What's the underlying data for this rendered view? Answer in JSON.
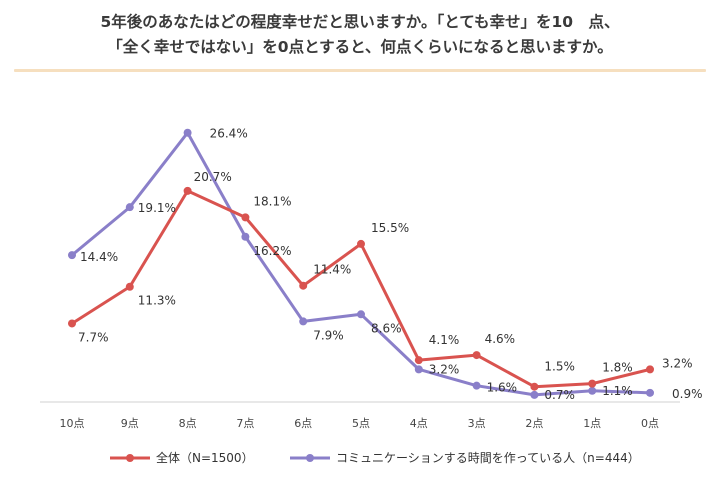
{
  "title": {
    "line1": "5年後のあなたはどの程度幸せだと思いますか。「とても幸せ」を10　点、",
    "line2": "「全く幸せではない」を0点とすると、何点くらいになると思いますか。"
  },
  "colors": {
    "series_all": "#d9534f",
    "series_comm": "#8a7fc9",
    "divider": "#f6dfbf"
  },
  "chart_data": {
    "type": "line",
    "categories": [
      "10点",
      "9点",
      "8点",
      "7点",
      "6点",
      "5点",
      "4点",
      "3点",
      "2点",
      "1点",
      "0点"
    ],
    "series": [
      {
        "name": "全体（N=1500）",
        "values": [
          7.7,
          11.3,
          20.7,
          18.1,
          11.4,
          15.5,
          4.1,
          4.6,
          1.5,
          1.8,
          3.2
        ],
        "labels": [
          "7.7%",
          "11.3%",
          "20.7%",
          "18.1%",
          "11.4%",
          "15.5%",
          "4.1%",
          "4.6%",
          "1.5%",
          "1.8%",
          "3.2%"
        ]
      },
      {
        "name": "コミュニケーションする時間を作っている人（n=444）",
        "values": [
          14.4,
          19.1,
          26.4,
          16.2,
          7.9,
          8.6,
          3.2,
          1.6,
          0.7,
          1.1,
          0.9
        ],
        "labels": [
          "14.4%",
          "19.1%",
          "26.4%",
          "16.2%",
          "7.9%",
          "8.6%",
          "3.2%",
          "1.6%",
          "0.7%",
          "1.1%",
          "0.9%"
        ]
      }
    ],
    "ylim": [
      0,
      28
    ],
    "grid": false,
    "legend_position": "bottom"
  }
}
